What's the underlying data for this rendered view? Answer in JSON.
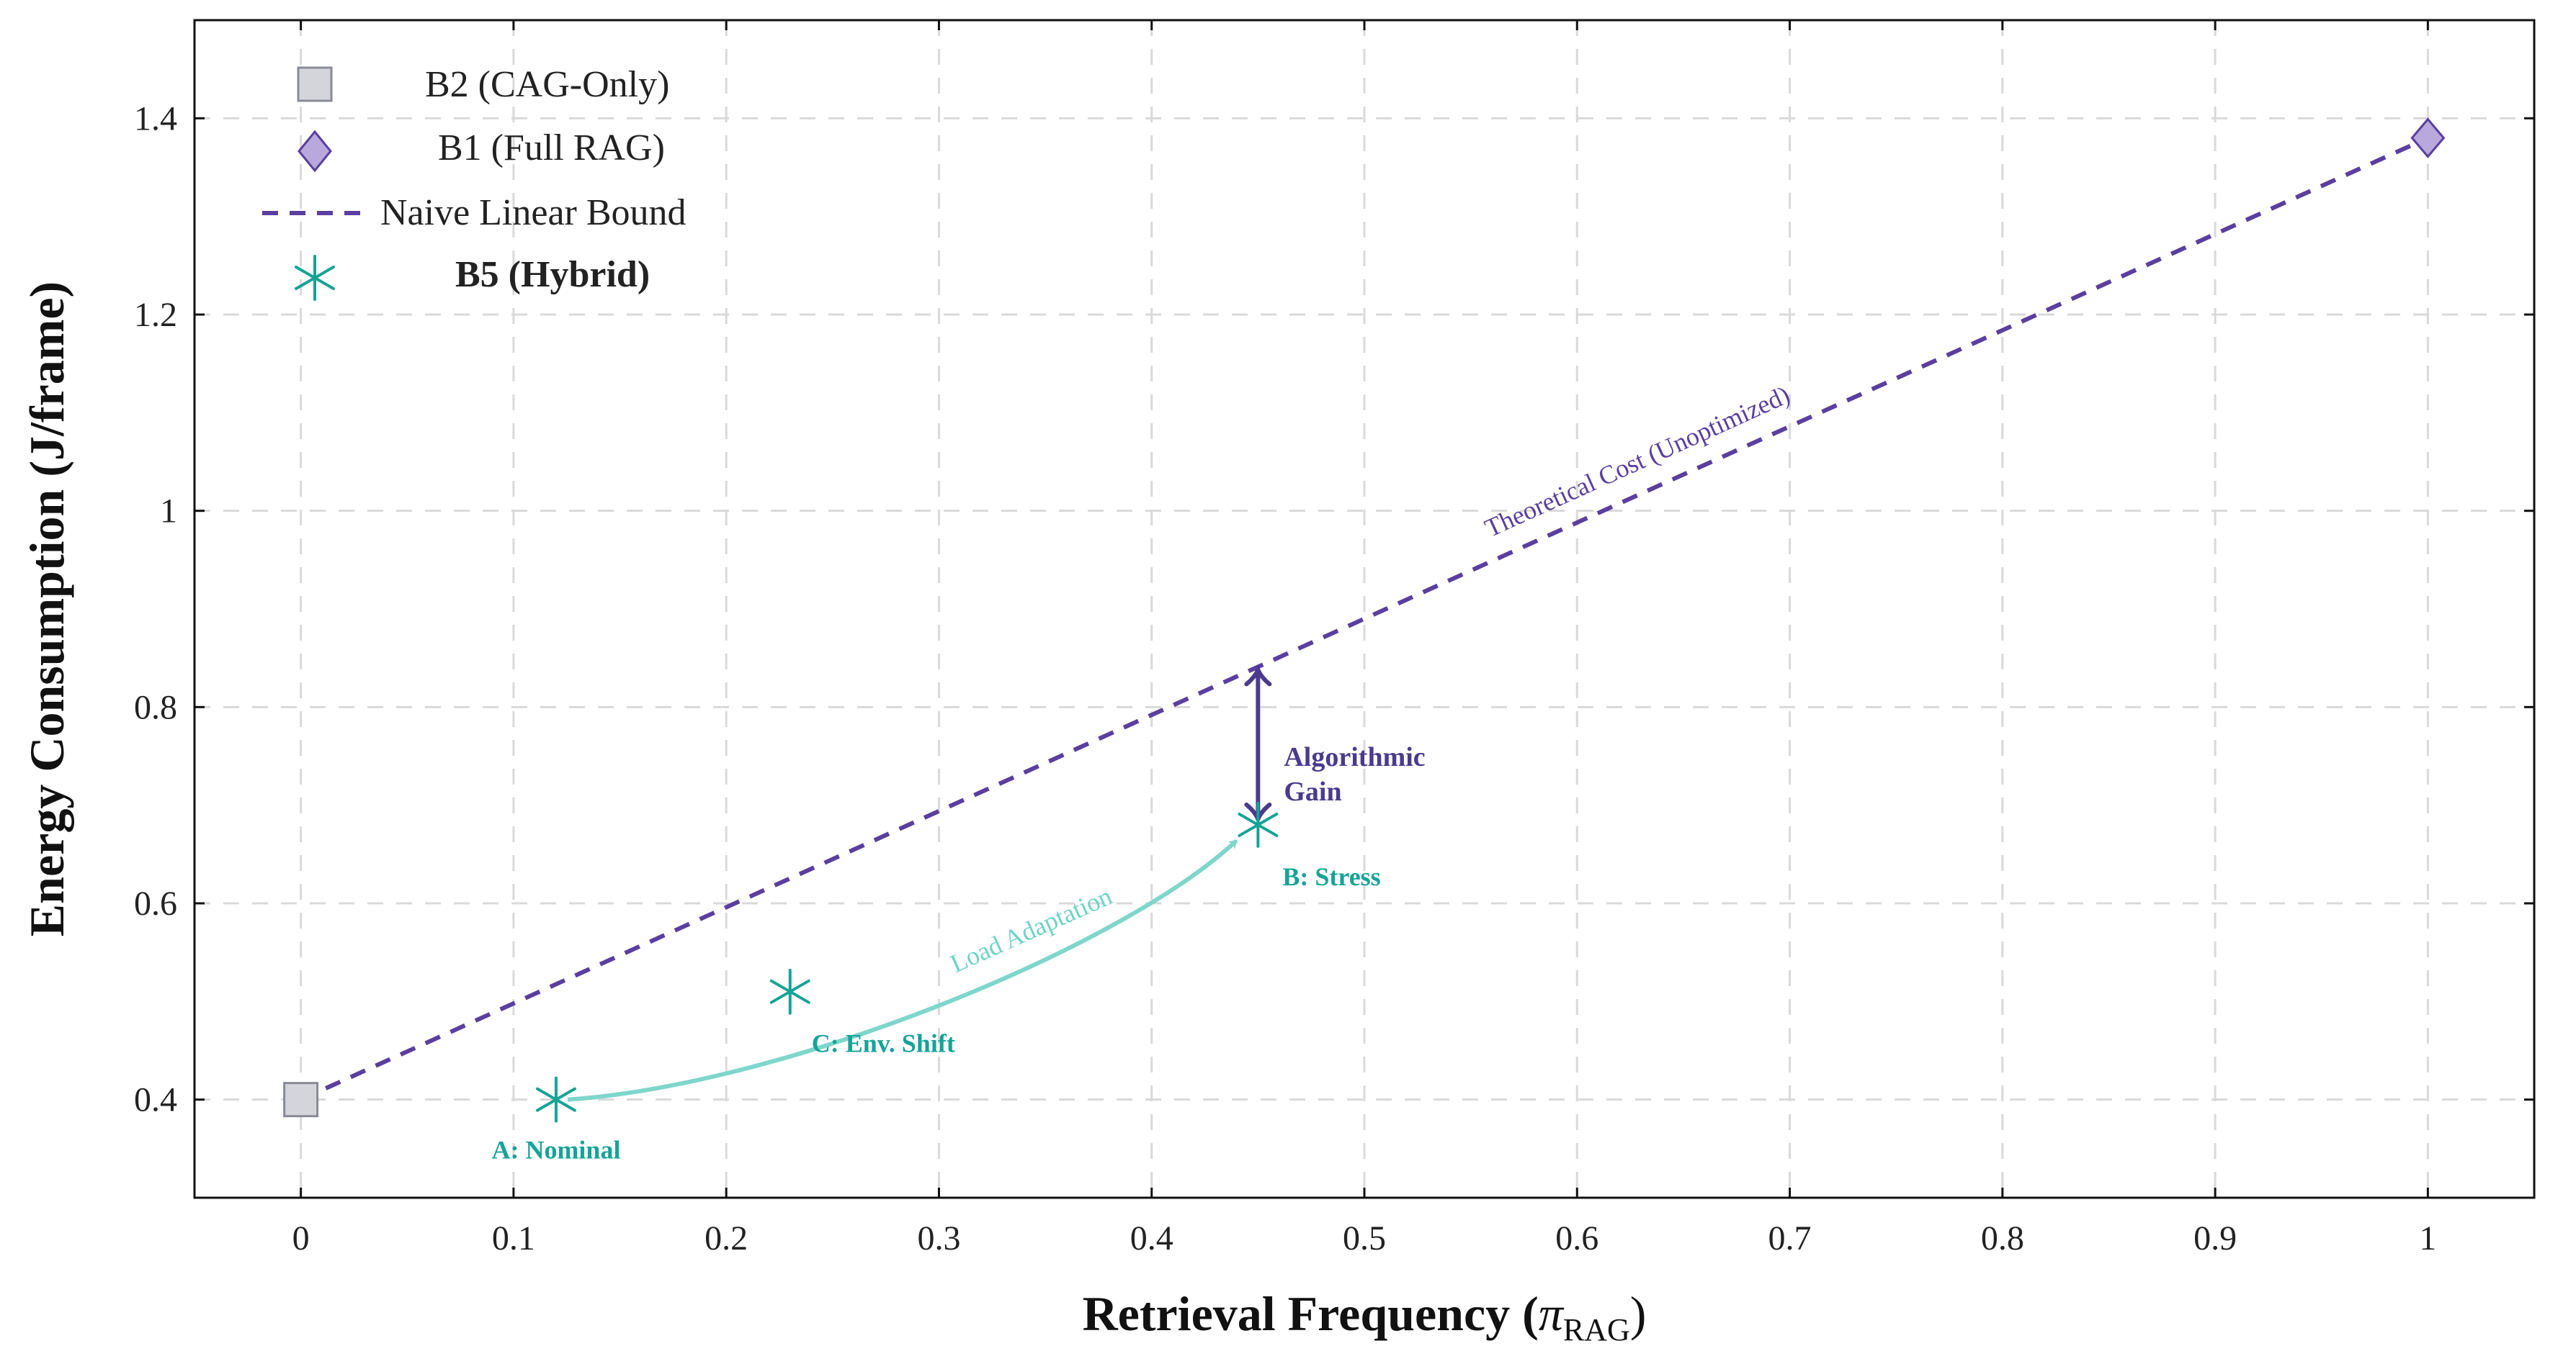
{
  "chart_data": {
    "type": "scatter",
    "xlabel_main": "Retrieval Frequency (",
    "xlabel_symbol": "π",
    "xlabel_sub": "RAG",
    "xlabel_close": ")",
    "ylabel": "Energy Consumption (J/frame)",
    "xlim": [
      -0.05,
      1.05
    ],
    "ylim": [
      0.3,
      1.5
    ],
    "x_ticks": [
      0,
      0.1,
      0.2,
      0.3,
      0.4,
      0.5,
      0.6,
      0.7,
      0.8,
      0.9,
      1
    ],
    "x_tick_labels": [
      "0",
      "0.1",
      "0.2",
      "0.3",
      "0.4",
      "0.5",
      "0.6",
      "0.7",
      "0.8",
      "0.9",
      "1"
    ],
    "y_ticks": [
      0.4,
      0.6,
      0.8,
      1.0,
      1.2,
      1.4
    ],
    "y_tick_labels": [
      "0.4",
      "0.6",
      "0.8",
      "1",
      "1.2",
      "1.4"
    ],
    "grid": true,
    "legend_position": "top-left",
    "legend": {
      "b2": "B2 (CAG-Only)",
      "b1": "B1 (Full RAG)",
      "naive": "Naive Linear Bound",
      "b5": "B5 (Hybrid)"
    },
    "series": [
      {
        "name": "B2 (CAG-Only)",
        "marker": "square",
        "x": [
          0
        ],
        "y": [
          0.4
        ]
      },
      {
        "name": "B1 (Full RAG)",
        "marker": "diamond",
        "x": [
          1
        ],
        "y": [
          1.38
        ]
      },
      {
        "name": "Naive Linear Bound",
        "style": "dashed-line",
        "x": [
          0,
          1
        ],
        "y": [
          0.4,
          1.38
        ]
      },
      {
        "name": "B5 (Hybrid)",
        "marker": "asterisk",
        "x": [
          0.12,
          0.23,
          0.45
        ],
        "y": [
          0.4,
          0.51,
          0.68
        ]
      }
    ],
    "point_labels": {
      "a": "A: Nominal",
      "b": "B: Stress",
      "c": "C: Env. Shift"
    },
    "annotations": {
      "theoretical": "Theoretical Cost (Unoptimized)",
      "load": "Load Adaptation",
      "gain_line1": "Algorithmic",
      "gain_line2": "Gain"
    },
    "colors": {
      "purple": "#5a3f9e",
      "dark_purple": "#4b3a8c",
      "teal": "#17a397",
      "light_teal": "#7fd6cb",
      "gray_fill": "#d4d5db",
      "gray_edge": "#8a8a96",
      "diamond_fill": "#b8a8dc"
    }
  }
}
